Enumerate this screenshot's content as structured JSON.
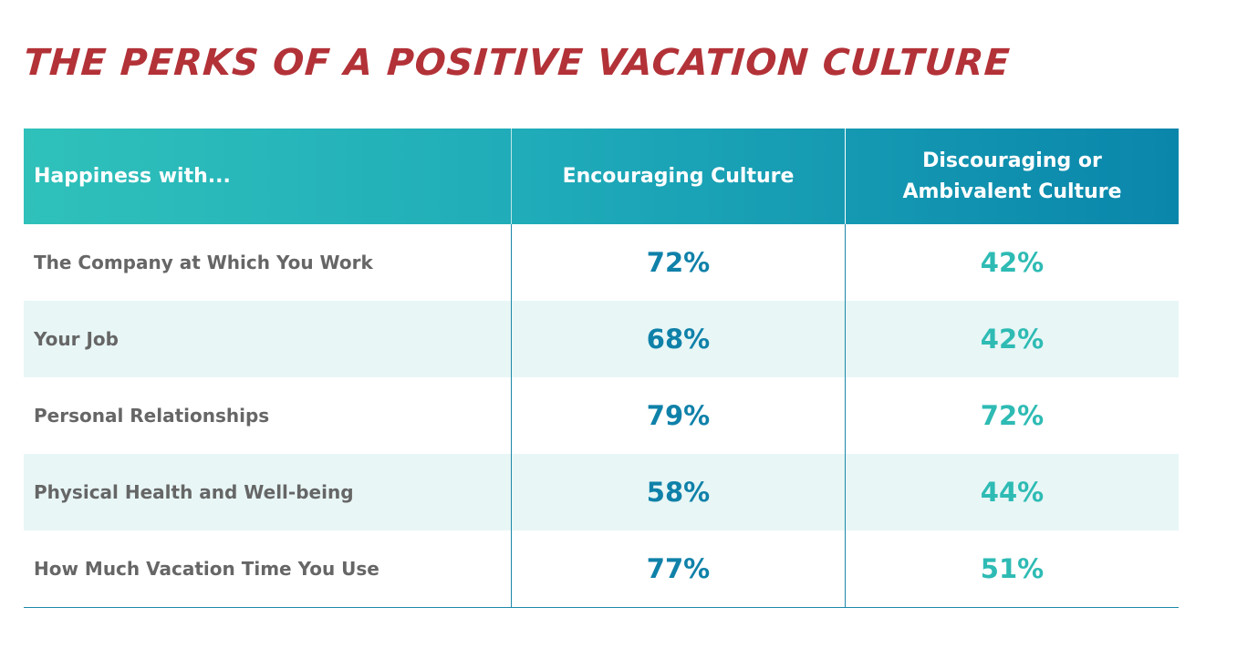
{
  "title": "THE PERKS OF A POSITIVE VACATION CULTURE",
  "colors": {
    "title": "#b23238",
    "header_start": "#2fc1ba",
    "header_end": "#0a86ab",
    "encouraging_value": "#0f81a9",
    "discouraging_value": "#2ebbb4",
    "alt_row": "#e8f6f6"
  },
  "chart_data": {
    "type": "table",
    "columns": [
      "Happiness with...",
      "Encouraging Culture",
      "Discouraging or Ambivalent Culture"
    ],
    "rows": [
      {
        "label": "The Company at Which You Work",
        "encouraging": "72%",
        "discouraging": "42%"
      },
      {
        "label": "Your Job",
        "encouraging": "68%",
        "discouraging": "42%"
      },
      {
        "label": "Personal Relationships",
        "encouraging": "79%",
        "discouraging": "72%"
      },
      {
        "label": "Physical Health and Well-being",
        "encouraging": "58%",
        "discouraging": "44%"
      },
      {
        "label": "How Much Vacation Time You Use",
        "encouraging": "77%",
        "discouraging": "51%"
      }
    ]
  }
}
